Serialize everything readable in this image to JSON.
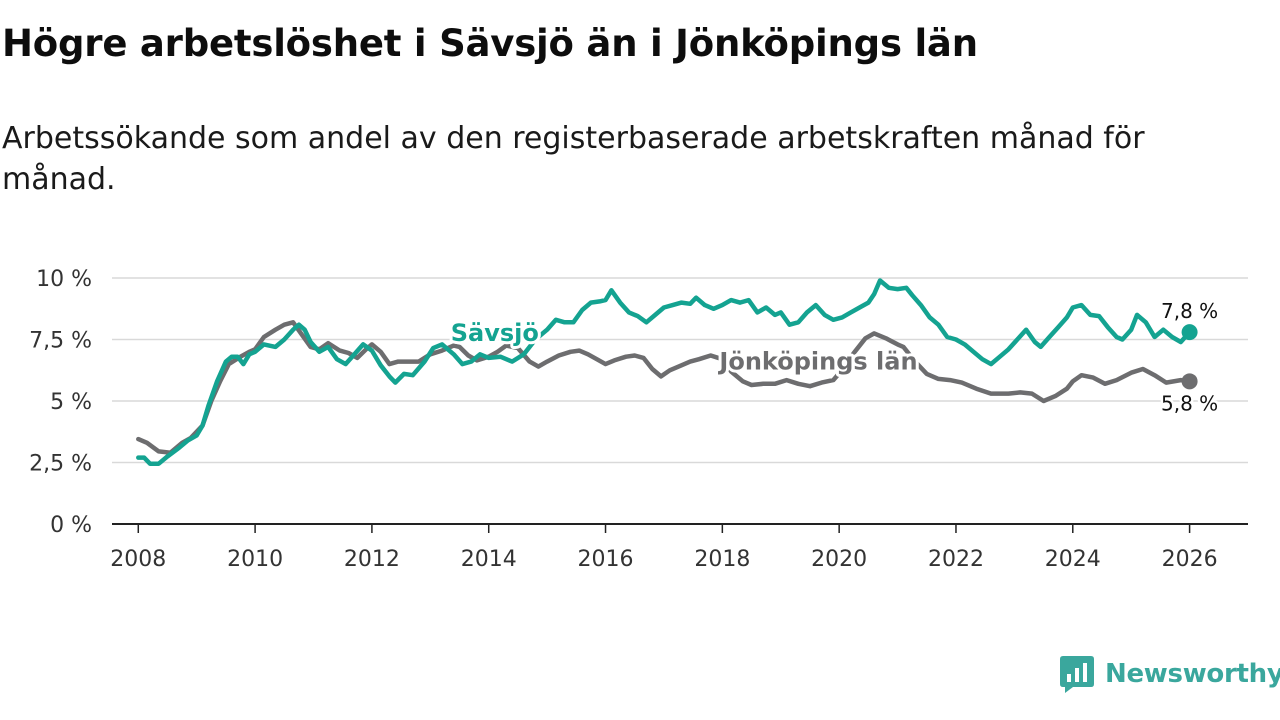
{
  "header": {
    "title": "Högre arbetslöshet i Sävsjö än i Jönköpings län",
    "subtitle": "Arbetssökande som andel av den registerbaserade arbetskraften månad för månad."
  },
  "brand": {
    "name": "Newsworthy",
    "icon": "newsworthy-logo-icon",
    "color": "#3aa79d"
  },
  "colors": {
    "savsjo": "#14a391",
    "lan": "#6d6d6f",
    "grid": "#d9d9d9",
    "axis": "#222222"
  },
  "chart_data": {
    "type": "line",
    "title": "Högre arbetslöshet i Sävsjö än i Jönköpings län",
    "xlabel": "",
    "ylabel": "",
    "xlim": [
      2007.55,
      2027.0
    ],
    "ylim": [
      0,
      10
    ],
    "x_ticks": [
      2008,
      2010,
      2012,
      2014,
      2016,
      2018,
      2020,
      2022,
      2024,
      2026
    ],
    "y_ticks": [
      0,
      2.5,
      5,
      7.5,
      10
    ],
    "y_tick_labels": [
      "0 %",
      "2,5 %",
      "5 %",
      "7,5 %",
      "10 %"
    ],
    "grid": true,
    "series": [
      {
        "name": "Jönköpings län",
        "label_x": 2017.95,
        "label_y": 6.65,
        "end_label": "5,8 %",
        "points": [
          [
            2008.0,
            3.45
          ],
          [
            2008.15,
            3.3
          ],
          [
            2008.35,
            2.95
          ],
          [
            2008.55,
            2.9
          ],
          [
            2008.75,
            3.3
          ],
          [
            2008.9,
            3.5
          ],
          [
            2009.1,
            4.0
          ],
          [
            2009.25,
            5.0
          ],
          [
            2009.4,
            5.8
          ],
          [
            2009.55,
            6.5
          ],
          [
            2009.75,
            6.8
          ],
          [
            2009.9,
            7.0
          ],
          [
            2010.0,
            7.1
          ],
          [
            2010.15,
            7.6
          ],
          [
            2010.35,
            7.9
          ],
          [
            2010.5,
            8.1
          ],
          [
            2010.65,
            8.2
          ],
          [
            2010.8,
            7.7
          ],
          [
            2010.95,
            7.2
          ],
          [
            2011.1,
            7.1
          ],
          [
            2011.25,
            7.35
          ],
          [
            2011.45,
            7.05
          ],
          [
            2011.6,
            6.95
          ],
          [
            2011.75,
            6.75
          ],
          [
            2011.9,
            7.1
          ],
          [
            2012.0,
            7.3
          ],
          [
            2012.15,
            7.0
          ],
          [
            2012.3,
            6.5
          ],
          [
            2012.45,
            6.6
          ],
          [
            2012.65,
            6.6
          ],
          [
            2012.8,
            6.6
          ],
          [
            2013.0,
            6.9
          ],
          [
            2013.2,
            7.05
          ],
          [
            2013.4,
            7.25
          ],
          [
            2013.5,
            7.2
          ],
          [
            2013.65,
            6.85
          ],
          [
            2013.8,
            6.65
          ],
          [
            2014.0,
            6.8
          ],
          [
            2014.15,
            7.0
          ],
          [
            2014.3,
            7.25
          ],
          [
            2014.5,
            7.15
          ],
          [
            2014.7,
            6.6
          ],
          [
            2014.85,
            6.4
          ],
          [
            2015.0,
            6.6
          ],
          [
            2015.2,
            6.85
          ],
          [
            2015.4,
            7.0
          ],
          [
            2015.55,
            7.05
          ],
          [
            2015.7,
            6.9
          ],
          [
            2015.85,
            6.7
          ],
          [
            2016.0,
            6.5
          ],
          [
            2016.15,
            6.65
          ],
          [
            2016.35,
            6.8
          ],
          [
            2016.5,
            6.85
          ],
          [
            2016.65,
            6.75
          ],
          [
            2016.8,
            6.3
          ],
          [
            2016.95,
            6.0
          ],
          [
            2017.1,
            6.25
          ],
          [
            2017.3,
            6.45
          ],
          [
            2017.45,
            6.6
          ],
          [
            2017.6,
            6.7
          ],
          [
            2017.8,
            6.85
          ],
          [
            2018.0,
            6.7
          ],
          [
            2018.15,
            6.2
          ],
          [
            2018.35,
            5.8
          ],
          [
            2018.5,
            5.65
          ],
          [
            2018.7,
            5.7
          ],
          [
            2018.9,
            5.7
          ],
          [
            2019.1,
            5.85
          ],
          [
            2019.3,
            5.7
          ],
          [
            2019.5,
            5.6
          ],
          [
            2019.7,
            5.75
          ],
          [
            2019.9,
            5.85
          ],
          [
            2020.1,
            6.4
          ],
          [
            2020.25,
            6.95
          ],
          [
            2020.45,
            7.55
          ],
          [
            2020.6,
            7.75
          ],
          [
            2020.8,
            7.55
          ],
          [
            2021.0,
            7.3
          ],
          [
            2021.1,
            7.2
          ],
          [
            2021.3,
            6.6
          ],
          [
            2021.5,
            6.1
          ],
          [
            2021.7,
            5.9
          ],
          [
            2021.9,
            5.85
          ],
          [
            2022.1,
            5.75
          ],
          [
            2022.35,
            5.5
          ],
          [
            2022.6,
            5.3
          ],
          [
            2022.9,
            5.3
          ],
          [
            2023.1,
            5.35
          ],
          [
            2023.3,
            5.3
          ],
          [
            2023.5,
            5.0
          ],
          [
            2023.7,
            5.2
          ],
          [
            2023.9,
            5.5
          ],
          [
            2024.0,
            5.8
          ],
          [
            2024.15,
            6.05
          ],
          [
            2024.35,
            5.95
          ],
          [
            2024.55,
            5.7
          ],
          [
            2024.75,
            5.85
          ],
          [
            2025.0,
            6.15
          ],
          [
            2025.2,
            6.3
          ],
          [
            2025.4,
            6.05
          ],
          [
            2025.6,
            5.75
          ],
          [
            2025.85,
            5.85
          ],
          [
            2026.0,
            5.8
          ]
        ]
      },
      {
        "name": "Sävsjö",
        "label_x": 2013.35,
        "label_y": 7.8,
        "end_label": "7,8 %",
        "points": [
          [
            2008.0,
            2.7
          ],
          [
            2008.1,
            2.7
          ],
          [
            2008.2,
            2.45
          ],
          [
            2008.35,
            2.45
          ],
          [
            2008.5,
            2.75
          ],
          [
            2008.7,
            3.1
          ],
          [
            2008.85,
            3.4
          ],
          [
            2009.0,
            3.6
          ],
          [
            2009.1,
            4.0
          ],
          [
            2009.2,
            4.8
          ],
          [
            2009.35,
            5.8
          ],
          [
            2009.5,
            6.6
          ],
          [
            2009.6,
            6.8
          ],
          [
            2009.7,
            6.8
          ],
          [
            2009.8,
            6.5
          ],
          [
            2009.9,
            6.9
          ],
          [
            2010.0,
            7.0
          ],
          [
            2010.15,
            7.3
          ],
          [
            2010.35,
            7.2
          ],
          [
            2010.5,
            7.5
          ],
          [
            2010.65,
            7.9
          ],
          [
            2010.75,
            8.1
          ],
          [
            2010.85,
            7.9
          ],
          [
            2010.95,
            7.4
          ],
          [
            2011.1,
            7.0
          ],
          [
            2011.25,
            7.2
          ],
          [
            2011.4,
            6.7
          ],
          [
            2011.55,
            6.5
          ],
          [
            2011.7,
            6.9
          ],
          [
            2011.85,
            7.3
          ],
          [
            2012.0,
            7.05
          ],
          [
            2012.15,
            6.45
          ],
          [
            2012.3,
            6.0
          ],
          [
            2012.4,
            5.75
          ],
          [
            2012.55,
            6.1
          ],
          [
            2012.7,
            6.05
          ],
          [
            2012.9,
            6.6
          ],
          [
            2013.05,
            7.15
          ],
          [
            2013.2,
            7.3
          ],
          [
            2013.4,
            6.9
          ],
          [
            2013.55,
            6.5
          ],
          [
            2013.7,
            6.6
          ],
          [
            2013.85,
            6.9
          ],
          [
            2014.0,
            6.75
          ],
          [
            2014.2,
            6.8
          ],
          [
            2014.4,
            6.6
          ],
          [
            2014.6,
            6.9
          ],
          [
            2014.8,
            7.5
          ],
          [
            2015.0,
            7.9
          ],
          [
            2015.15,
            8.3
          ],
          [
            2015.3,
            8.2
          ],
          [
            2015.45,
            8.2
          ],
          [
            2015.6,
            8.7
          ],
          [
            2015.75,
            9.0
          ],
          [
            2015.9,
            9.05
          ],
          [
            2016.0,
            9.1
          ],
          [
            2016.1,
            9.5
          ],
          [
            2016.25,
            9.0
          ],
          [
            2016.4,
            8.6
          ],
          [
            2016.55,
            8.45
          ],
          [
            2016.7,
            8.2
          ],
          [
            2016.85,
            8.5
          ],
          [
            2017.0,
            8.8
          ],
          [
            2017.15,
            8.9
          ],
          [
            2017.3,
            9.0
          ],
          [
            2017.45,
            8.95
          ],
          [
            2017.55,
            9.2
          ],
          [
            2017.7,
            8.9
          ],
          [
            2017.85,
            8.75
          ],
          [
            2018.0,
            8.9
          ],
          [
            2018.15,
            9.1
          ],
          [
            2018.3,
            9.0
          ],
          [
            2018.45,
            9.1
          ],
          [
            2018.6,
            8.6
          ],
          [
            2018.75,
            8.8
          ],
          [
            2018.9,
            8.5
          ],
          [
            2019.0,
            8.6
          ],
          [
            2019.15,
            8.1
          ],
          [
            2019.3,
            8.2
          ],
          [
            2019.45,
            8.6
          ],
          [
            2019.6,
            8.9
          ],
          [
            2019.75,
            8.5
          ],
          [
            2019.9,
            8.3
          ],
          [
            2020.05,
            8.4
          ],
          [
            2020.2,
            8.6
          ],
          [
            2020.35,
            8.8
          ],
          [
            2020.5,
            9.0
          ],
          [
            2020.6,
            9.35
          ],
          [
            2020.7,
            9.9
          ],
          [
            2020.85,
            9.6
          ],
          [
            2021.0,
            9.55
          ],
          [
            2021.15,
            9.6
          ],
          [
            2021.25,
            9.3
          ],
          [
            2021.4,
            8.9
          ],
          [
            2021.55,
            8.4
          ],
          [
            2021.7,
            8.1
          ],
          [
            2021.85,
            7.6
          ],
          [
            2022.0,
            7.5
          ],
          [
            2022.15,
            7.3
          ],
          [
            2022.3,
            7.0
          ],
          [
            2022.45,
            6.7
          ],
          [
            2022.6,
            6.5
          ],
          [
            2022.75,
            6.8
          ],
          [
            2022.9,
            7.1
          ],
          [
            2023.05,
            7.5
          ],
          [
            2023.2,
            7.9
          ],
          [
            2023.35,
            7.4
          ],
          [
            2023.45,
            7.2
          ],
          [
            2023.6,
            7.6
          ],
          [
            2023.75,
            8.0
          ],
          [
            2023.9,
            8.4
          ],
          [
            2024.0,
            8.8
          ],
          [
            2024.15,
            8.9
          ],
          [
            2024.3,
            8.5
          ],
          [
            2024.45,
            8.45
          ],
          [
            2024.6,
            8.0
          ],
          [
            2024.75,
            7.6
          ],
          [
            2024.85,
            7.5
          ],
          [
            2025.0,
            7.9
          ],
          [
            2025.1,
            8.5
          ],
          [
            2025.25,
            8.2
          ],
          [
            2025.4,
            7.6
          ],
          [
            2025.55,
            7.9
          ],
          [
            2025.7,
            7.6
          ],
          [
            2025.85,
            7.4
          ],
          [
            2026.0,
            7.8
          ]
        ]
      }
    ]
  }
}
